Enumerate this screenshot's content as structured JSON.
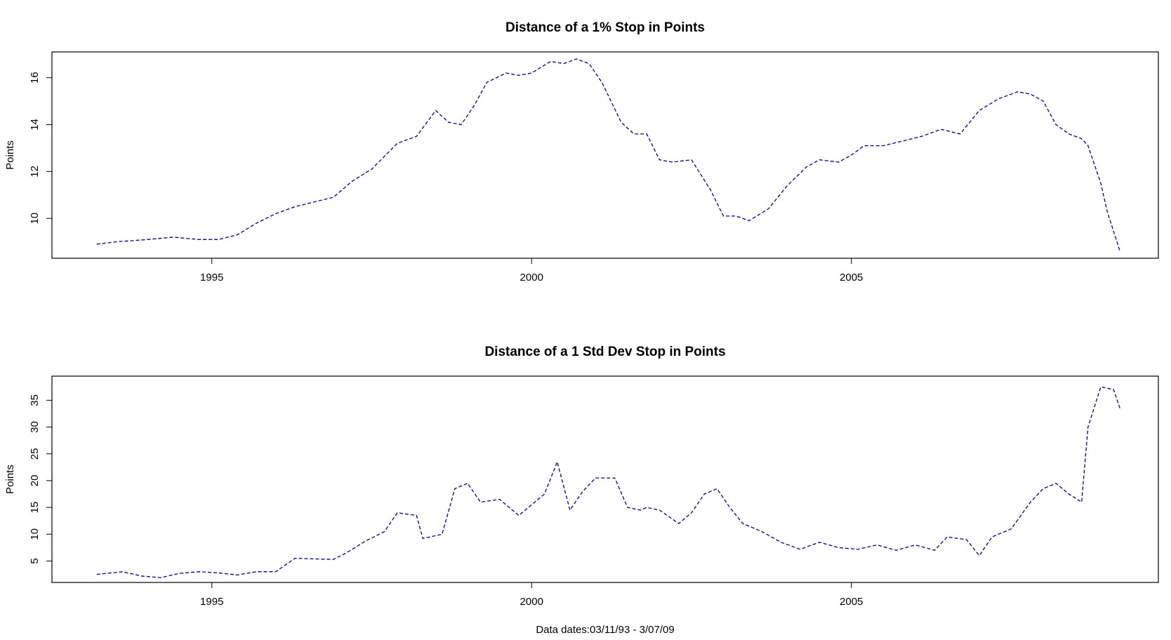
{
  "footer_text": "Data dates:03/11/93 - 3/07/09",
  "line_color": "#00008b",
  "chart_data": [
    {
      "type": "line",
      "title": "Distance of a 1% Stop in Points",
      "xlabel": "",
      "ylabel": "Points",
      "xlim": [
        1992.5,
        2009.8
      ],
      "ylim": [
        8.3,
        17.1
      ],
      "xticks": [
        1995,
        2000,
        2005
      ],
      "yticks": [
        10,
        12,
        14,
        16
      ],
      "line_style": "dashed",
      "x": [
        1993.2,
        1993.5,
        1994.0,
        1994.4,
        1994.8,
        1995.1,
        1995.4,
        1995.7,
        1996.0,
        1996.3,
        1996.6,
        1996.9,
        1997.2,
        1997.5,
        1997.9,
        1998.2,
        1998.5,
        1998.7,
        1998.9,
        1999.1,
        1999.3,
        1999.6,
        1999.8,
        2000.0,
        2000.3,
        2000.5,
        2000.7,
        2000.9,
        2001.1,
        2001.4,
        2001.6,
        2001.8,
        2002.0,
        2002.2,
        2002.5,
        2002.8,
        2003.0,
        2003.2,
        2003.4,
        2003.7,
        2004.0,
        2004.3,
        2004.5,
        2004.8,
        2005.0,
        2005.2,
        2005.5,
        2005.8,
        2006.1,
        2006.4,
        2006.7,
        2007.0,
        2007.3,
        2007.6,
        2007.8,
        2008.0,
        2008.2,
        2008.4,
        2008.6,
        2008.7,
        2008.9,
        2009.0,
        2009.2
      ],
      "y": [
        8.9,
        9.0,
        9.1,
        9.2,
        9.1,
        9.1,
        9.3,
        9.8,
        10.2,
        10.5,
        10.7,
        10.9,
        11.6,
        12.1,
        13.2,
        13.5,
        14.6,
        14.1,
        14.0,
        14.8,
        15.8,
        16.2,
        16.1,
        16.2,
        16.7,
        16.6,
        16.8,
        16.6,
        15.8,
        14.1,
        13.6,
        13.6,
        12.5,
        12.4,
        12.5,
        11.2,
        10.1,
        10.1,
        9.9,
        10.4,
        11.4,
        12.2,
        12.5,
        12.4,
        12.7,
        13.1,
        13.1,
        13.3,
        13.5,
        13.8,
        13.6,
        14.6,
        15.1,
        15.4,
        15.3,
        15.0,
        14.0,
        13.6,
        13.4,
        13.1,
        11.5,
        10.3,
        8.6
      ]
    },
    {
      "type": "line",
      "title": "Distance of a 1 Std Dev Stop in Points",
      "xlabel": "",
      "ylabel": "Points",
      "xlim": [
        1992.5,
        2009.8
      ],
      "ylim": [
        1.0,
        39.5
      ],
      "xticks": [
        1995,
        2000,
        2005
      ],
      "yticks": [
        5,
        10,
        15,
        20,
        25,
        30,
        35
      ],
      "line_style": "dashed",
      "x": [
        1993.2,
        1993.6,
        1993.9,
        1994.2,
        1994.5,
        1994.8,
        1995.1,
        1995.4,
        1995.7,
        1996.0,
        1996.3,
        1996.6,
        1996.9,
        1997.1,
        1997.4,
        1997.7,
        1997.9,
        1998.2,
        1998.3,
        1998.6,
        1998.8,
        1999.0,
        1999.2,
        1999.5,
        1999.8,
        2000.0,
        2000.2,
        2000.4,
        2000.6,
        2000.8,
        2001.0,
        2001.3,
        2001.5,
        2001.7,
        2001.8,
        2002.0,
        2002.3,
        2002.5,
        2002.7,
        2002.9,
        2003.1,
        2003.3,
        2003.6,
        2003.9,
        2004.2,
        2004.5,
        2004.8,
        2005.1,
        2005.4,
        2005.7,
        2006.0,
        2006.3,
        2006.5,
        2006.8,
        2007.0,
        2007.2,
        2007.5,
        2007.8,
        2008.0,
        2008.2,
        2008.4,
        2008.6,
        2008.7,
        2008.9,
        2009.1,
        2009.2
      ],
      "y": [
        2.5,
        3.0,
        2.2,
        1.9,
        2.7,
        3.0,
        2.8,
        2.4,
        3.0,
        3.0,
        5.5,
        5.4,
        5.3,
        6.5,
        8.7,
        10.5,
        14.0,
        13.5,
        9.2,
        10.0,
        18.5,
        19.5,
        16.0,
        16.5,
        13.5,
        15.5,
        17.5,
        23.5,
        14.5,
        18.0,
        20.5,
        20.5,
        15.0,
        14.5,
        15.0,
        14.5,
        12.0,
        14.0,
        17.5,
        18.5,
        15.0,
        12.0,
        10.5,
        8.5,
        7.2,
        8.5,
        7.5,
        7.2,
        8.0,
        7.0,
        8.0,
        7.0,
        9.5,
        9.0,
        6.0,
        9.5,
        11.0,
        16.0,
        18.5,
        19.5,
        17.5,
        16.0,
        30.0,
        37.5,
        37.0,
        33.5
      ]
    }
  ]
}
